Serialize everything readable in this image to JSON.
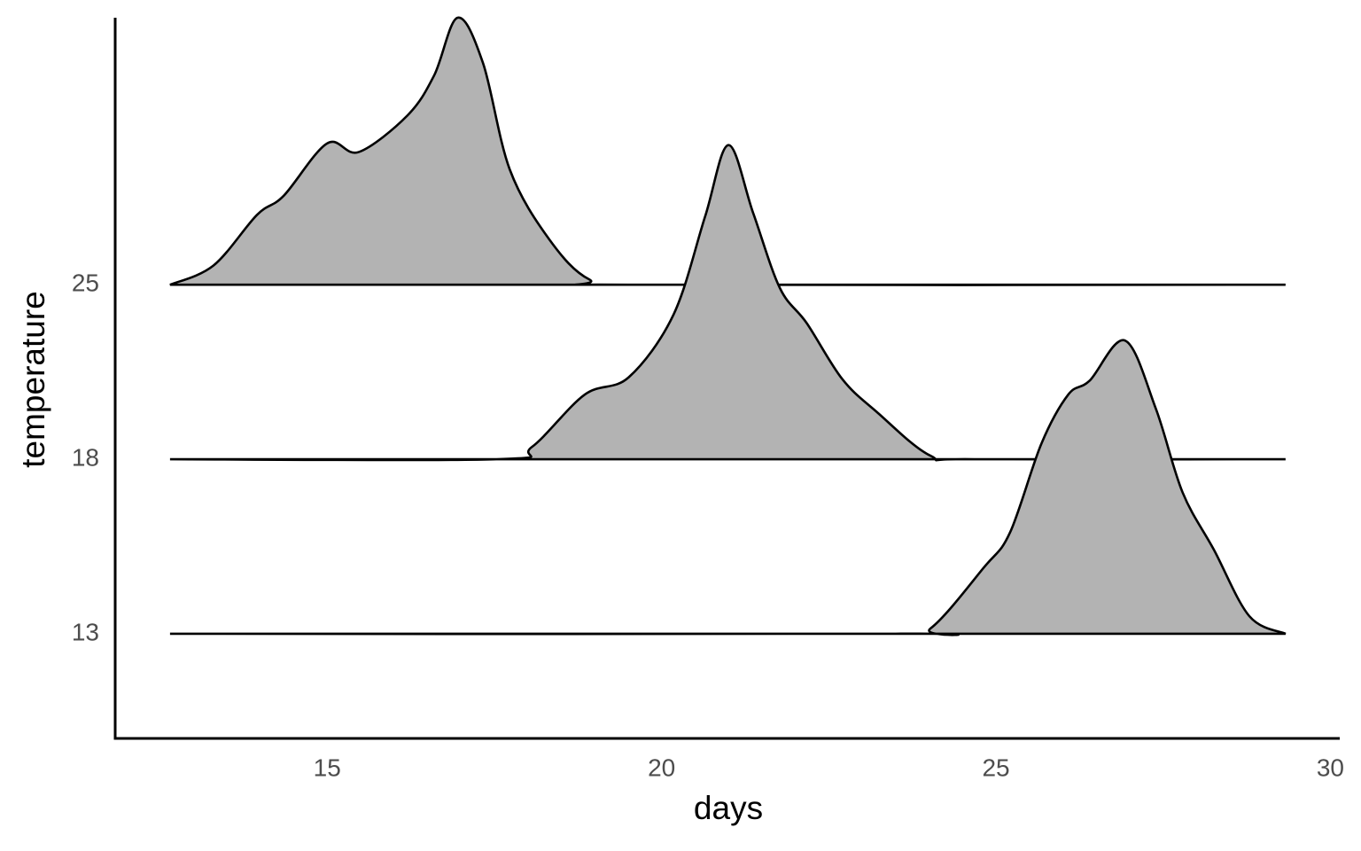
{
  "chart_data": {
    "type": "ridgeline",
    "x_label": "days",
    "y_label": "temperature",
    "xlim": [
      11.83,
      30.14
    ],
    "xticks": [
      15,
      20,
      25,
      30
    ],
    "ylim": [
      -0.6,
      3.53
    ],
    "fill": "#b3b3b3",
    "line_color": "#000000",
    "series": [
      {
        "name": "13",
        "x": [
          12.65,
          23.5,
          24.02,
          24.82,
          25.21,
          25.68,
          26.08,
          26.4,
          26.93,
          27.39,
          27.79,
          28.26,
          28.79,
          29.33
        ],
        "values": [
          0,
          0,
          0.03,
          0.38,
          0.58,
          1.09,
          1.37,
          1.45,
          1.68,
          1.29,
          0.81,
          0.48,
          0.1,
          0
        ]
      },
      {
        "name": "18",
        "x": [
          12.65,
          17.53,
          18.06,
          18.85,
          19.51,
          20.18,
          20.65,
          21.0,
          21.37,
          21.77,
          22.17,
          22.7,
          23.22,
          24.02,
          24.68,
          29.33
        ],
        "values": [
          0,
          0,
          0.07,
          0.37,
          0.47,
          0.83,
          1.39,
          1.8,
          1.41,
          0.98,
          0.78,
          0.46,
          0.27,
          0.02,
          0,
          0
        ]
      },
      {
        "name": "25",
        "x": [
          12.65,
          13.3,
          13.95,
          14.35,
          15.0,
          15.47,
          16.2,
          16.6,
          16.95,
          17.33,
          17.73,
          18.32,
          18.92,
          19.65,
          29.33
        ],
        "values": [
          0,
          0.11,
          0.4,
          0.51,
          0.81,
          0.76,
          0.97,
          1.2,
          1.53,
          1.27,
          0.66,
          0.26,
          0.03,
          0,
          0
        ]
      }
    ]
  }
}
